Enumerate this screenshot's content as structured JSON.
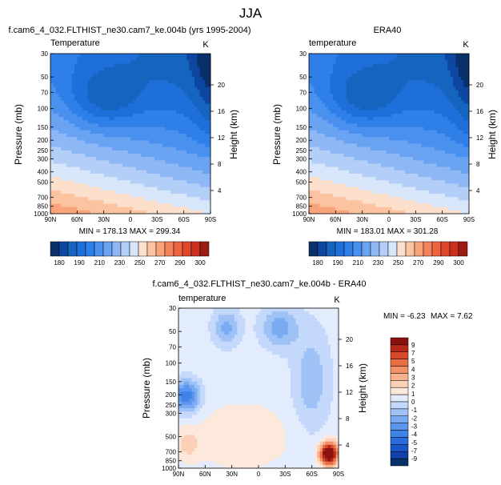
{
  "page": {
    "title": "JJA"
  },
  "cmap_abs": [
    "#08306b",
    "#0d47a1",
    "#1565c0",
    "#1e6fd9",
    "#2f7fe8",
    "#4a90ee",
    "#6aa3f2",
    "#8db8f5",
    "#b3cff8",
    "#d8e6fb",
    "#fde0cc",
    "#fbc3a0",
    "#f8a37a",
    "#f4825a",
    "#ee6340",
    "#e0462c",
    "#cb2f1f",
    "#9e1b14"
  ],
  "cmap_diff": [
    "#08306b",
    "#1040a8",
    "#1a56c8",
    "#2a6cde",
    "#3f82e8",
    "#5a96ee",
    "#7aaaf2",
    "#9fc2f6",
    "#c3d8fa",
    "#e2ecfc",
    "#fde8dc",
    "#fbd0b6",
    "#f8b38e",
    "#f29268",
    "#e86e46",
    "#d54a2c",
    "#b5281a",
    "#8b1010"
  ],
  "chart_data": [
    {
      "type": "heatmap",
      "title": "f.cam6_4_032.FLTHIST_ne30.cam7_ke.004b (yrs 1995-2004)",
      "subtitle": "Temperature",
      "units": "K",
      "ylabel": "Pressure (mb)",
      "ylabel_right": "Height (km)",
      "xticks": [
        "90N",
        "60N",
        "30N",
        "0",
        "30S",
        "60S",
        "90S"
      ],
      "yticks": [
        "30",
        "50",
        "70",
        "100",
        "150",
        "200",
        "250",
        "300",
        "400",
        "500",
        "700",
        "850",
        "1000"
      ],
      "yticks_right": [
        "20",
        "16",
        "12",
        "8",
        "4"
      ],
      "stats": "MIN = 178.13  MAX = 299.34",
      "colorbar": {
        "labels": [
          "180",
          "190",
          "210",
          "230",
          "250",
          "270",
          "290",
          "300"
        ],
        "levels": [
          180,
          185,
          190,
          200,
          210,
          220,
          230,
          240,
          250,
          260,
          270,
          280,
          290,
          295,
          300
        ]
      }
    },
    {
      "type": "heatmap",
      "title": "ERA40",
      "subtitle": "temperature",
      "units": "K",
      "ylabel": "Pressure (mb)",
      "ylabel_right": "Height (km)",
      "xticks": [
        "90N",
        "60N",
        "30N",
        "0",
        "30S",
        "60S",
        "90S"
      ],
      "yticks": [
        "30",
        "50",
        "70",
        "100",
        "150",
        "200",
        "250",
        "300",
        "400",
        "500",
        "700",
        "850",
        "1000"
      ],
      "yticks_right": [
        "20",
        "16",
        "12",
        "8",
        "4"
      ],
      "stats": "MIN = 183.01  MAX = 301.28",
      "colorbar": {
        "labels": [
          "180",
          "190",
          "210",
          "230",
          "250",
          "270",
          "290",
          "300"
        ]
      }
    },
    {
      "type": "heatmap",
      "title": "f.cam6_4_032.FLTHIST_ne30.cam7_ke.004b - ERA40",
      "subtitle": "temperature",
      "units": "K",
      "ylabel": "Pressure (mb)",
      "ylabel_right": "Height (km)",
      "xticks": [
        "90N",
        "60N",
        "30N",
        "0",
        "30S",
        "60S",
        "90S"
      ],
      "yticks": [
        "30",
        "50",
        "70",
        "100",
        "150",
        "200",
        "250",
        "300",
        "500",
        "700",
        "850",
        "1000"
      ],
      "yticks_right": [
        "20",
        "16",
        "12",
        "8",
        "4"
      ],
      "stats_min": "MIN = -6.23",
      "stats_max": "MAX =  7.62",
      "colorbar": {
        "labels": [
          "9",
          "7",
          "5",
          "4",
          "3",
          "2",
          "1",
          "0",
          "-1",
          "-2",
          "-3",
          "-4",
          "-5",
          "-7",
          "-9"
        ]
      }
    }
  ]
}
